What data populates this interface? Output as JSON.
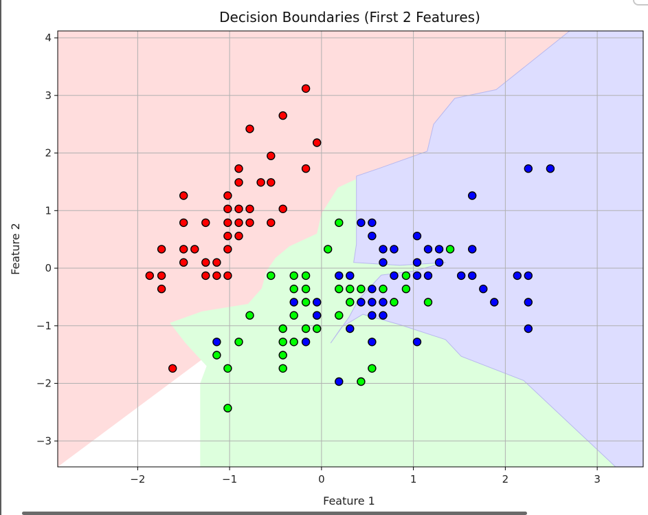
{
  "chart_data": {
    "type": "scatter",
    "title": "Decision Boundaries (First 2 Features)",
    "xlabel": "Feature 1",
    "ylabel": "Feature 2",
    "xlim": [
      -2.87,
      3.5
    ],
    "ylim": [
      -3.45,
      4.12
    ],
    "xticks": [
      -2,
      -1,
      0,
      1,
      2,
      3
    ],
    "xtick_labels": [
      "−2",
      "−1",
      "0",
      "1",
      "2",
      "3"
    ],
    "yticks": [
      -3,
      -2,
      -1,
      0,
      1,
      2,
      3,
      4
    ],
    "ytick_labels": [
      "−3",
      "−2",
      "−1",
      "0",
      "1",
      "2",
      "3",
      "4"
    ],
    "grid": true,
    "legend": "none",
    "colors": {
      "red_points": "#ff0000",
      "green_points": "#00ff00",
      "blue_points": "#0000ff",
      "red_region": "#ffdddd",
      "green_region": "#ddffdd",
      "blue_region": "#ddddff",
      "grid": "#b0b0b0"
    },
    "regions": [
      {
        "class": "red",
        "color": "#ffdddd",
        "polygon": [
          [
            -2.87,
            4.12
          ],
          [
            3.5,
            4.12
          ],
          [
            -2.87,
            -3.45
          ]
        ]
      },
      {
        "class": "green",
        "color": "#ddffdd",
        "polygon": [
          [
            -1.32,
            -3.45
          ],
          [
            -1.32,
            -2.0
          ],
          [
            -1.25,
            -1.7
          ],
          [
            -1.48,
            -1.3
          ],
          [
            -1.65,
            -0.95
          ],
          [
            -1.3,
            -0.75
          ],
          [
            -0.8,
            -0.62
          ],
          [
            -0.65,
            -0.35
          ],
          [
            -0.6,
            -0.05
          ],
          [
            -0.5,
            0.18
          ],
          [
            -0.35,
            0.38
          ],
          [
            -0.05,
            0.6
          ],
          [
            0.0,
            0.95
          ],
          [
            0.18,
            1.4
          ],
          [
            0.38,
            1.55
          ],
          [
            0.78,
            1.6
          ],
          [
            1.0,
            1.05
          ],
          [
            1.5,
            0.9
          ],
          [
            2.5,
            0.1
          ],
          [
            2.95,
            -1.5
          ],
          [
            3.5,
            -3.45
          ]
        ]
      },
      {
        "class": "blue",
        "color": "#ddddff",
        "polygon": [
          [
            3.5,
            4.12
          ],
          [
            2.7,
            4.12
          ],
          [
            1.9,
            3.1
          ],
          [
            1.45,
            2.95
          ],
          [
            1.22,
            2.5
          ],
          [
            1.15,
            2.03
          ],
          [
            0.62,
            1.73
          ],
          [
            0.38,
            1.6
          ],
          [
            0.38,
            0.42
          ],
          [
            0.35,
            0.1
          ],
          [
            0.55,
            0.08
          ],
          [
            0.85,
            0.05
          ],
          [
            1.35,
            0.1
          ],
          [
            1.0,
            -0.05
          ],
          [
            0.65,
            -0.12
          ],
          [
            0.4,
            -0.55
          ],
          [
            0.3,
            -0.85
          ],
          [
            0.1,
            -1.3
          ],
          [
            0.22,
            -1.02
          ],
          [
            0.45,
            -0.8
          ],
          [
            0.85,
            -0.98
          ],
          [
            1.35,
            -1.24
          ],
          [
            1.52,
            -1.53
          ],
          [
            2.2,
            -1.95
          ],
          [
            2.9,
            -3.0
          ],
          [
            3.2,
            -3.45
          ],
          [
            3.5,
            -3.45
          ]
        ]
      }
    ],
    "series": [
      {
        "color": "#ff0000",
        "points": [
          [
            -0.17,
            3.12
          ],
          [
            -0.42,
            2.65
          ],
          [
            -0.78,
            2.42
          ],
          [
            -0.05,
            2.18
          ],
          [
            -0.55,
            1.95
          ],
          [
            -0.17,
            1.73
          ],
          [
            -0.9,
            1.73
          ],
          [
            -0.9,
            1.49
          ],
          [
            -0.66,
            1.49
          ],
          [
            -0.55,
            1.49
          ],
          [
            -1.5,
            1.26
          ],
          [
            -1.02,
            1.26
          ],
          [
            -1.02,
            1.03
          ],
          [
            -0.9,
            1.03
          ],
          [
            -0.78,
            1.03
          ],
          [
            -0.42,
            1.03
          ],
          [
            -1.5,
            0.79
          ],
          [
            -1.26,
            0.79
          ],
          [
            -1.02,
            0.79
          ],
          [
            -0.9,
            0.79
          ],
          [
            -0.78,
            0.79
          ],
          [
            -0.55,
            0.79
          ],
          [
            -1.02,
            0.56
          ],
          [
            -0.9,
            0.56
          ],
          [
            -1.74,
            0.33
          ],
          [
            -1.5,
            0.33
          ],
          [
            -1.38,
            0.33
          ],
          [
            -1.02,
            0.33
          ],
          [
            -1.5,
            0.1
          ],
          [
            -1.26,
            0.1
          ],
          [
            -1.14,
            0.1
          ],
          [
            -1.87,
            -0.13
          ],
          [
            -1.74,
            -0.13
          ],
          [
            -1.26,
            -0.13
          ],
          [
            -1.14,
            -0.13
          ],
          [
            -1.02,
            -0.13
          ],
          [
            -1.74,
            -0.36
          ],
          [
            -1.62,
            -1.74
          ]
        ]
      },
      {
        "color": "#00ff00",
        "points": [
          [
            0.19,
            0.79
          ],
          [
            0.07,
            0.33
          ],
          [
            1.4,
            0.33
          ],
          [
            -0.55,
            -0.13
          ],
          [
            -0.3,
            -0.13
          ],
          [
            -0.17,
            -0.13
          ],
          [
            0.92,
            -0.13
          ],
          [
            -0.3,
            -0.36
          ],
          [
            -0.17,
            -0.36
          ],
          [
            0.19,
            -0.36
          ],
          [
            0.31,
            -0.36
          ],
          [
            0.43,
            -0.36
          ],
          [
            0.67,
            -0.36
          ],
          [
            0.92,
            -0.36
          ],
          [
            -0.17,
            -0.59
          ],
          [
            0.31,
            -0.59
          ],
          [
            0.79,
            -0.59
          ],
          [
            1.16,
            -0.59
          ],
          [
            -0.78,
            -0.82
          ],
          [
            -0.3,
            -0.82
          ],
          [
            -0.05,
            -0.82
          ],
          [
            0.19,
            -0.82
          ],
          [
            -0.42,
            -1.05
          ],
          [
            -0.17,
            -1.05
          ],
          [
            -0.05,
            -1.05
          ],
          [
            -0.9,
            -1.28
          ],
          [
            -0.42,
            -1.28
          ],
          [
            -0.3,
            -1.28
          ],
          [
            -1.14,
            -1.51
          ],
          [
            -0.42,
            -1.51
          ],
          [
            -1.02,
            -1.74
          ],
          [
            -0.42,
            -1.74
          ],
          [
            0.55,
            -1.74
          ],
          [
            0.43,
            -1.97
          ],
          [
            -1.02,
            -2.43
          ]
        ]
      },
      {
        "color": "#0000ff",
        "points": [
          [
            2.25,
            1.73
          ],
          [
            2.49,
            1.73
          ],
          [
            1.64,
            1.26
          ],
          [
            0.43,
            0.79
          ],
          [
            0.55,
            0.79
          ],
          [
            0.55,
            0.56
          ],
          [
            1.04,
            0.56
          ],
          [
            0.67,
            0.33
          ],
          [
            0.79,
            0.33
          ],
          [
            1.16,
            0.33
          ],
          [
            1.28,
            0.33
          ],
          [
            1.64,
            0.33
          ],
          [
            0.67,
            0.1
          ],
          [
            1.04,
            0.1
          ],
          [
            1.28,
            0.1
          ],
          [
            0.19,
            -0.13
          ],
          [
            0.31,
            -0.13
          ],
          [
            0.79,
            -0.13
          ],
          [
            1.04,
            -0.13
          ],
          [
            1.16,
            -0.13
          ],
          [
            1.52,
            -0.13
          ],
          [
            1.64,
            -0.13
          ],
          [
            2.13,
            -0.13
          ],
          [
            2.25,
            -0.13
          ],
          [
            0.55,
            -0.36
          ],
          [
            1.76,
            -0.36
          ],
          [
            -0.3,
            -0.59
          ],
          [
            -0.05,
            -0.59
          ],
          [
            0.43,
            -0.59
          ],
          [
            0.55,
            -0.59
          ],
          [
            0.67,
            -0.59
          ],
          [
            1.88,
            -0.59
          ],
          [
            2.25,
            -0.59
          ],
          [
            -0.05,
            -0.82
          ],
          [
            0.55,
            -0.82
          ],
          [
            0.67,
            -0.82
          ],
          [
            0.31,
            -1.05
          ],
          [
            2.25,
            -1.05
          ],
          [
            -1.14,
            -1.28
          ],
          [
            -0.17,
            -1.28
          ],
          [
            0.55,
            -1.28
          ],
          [
            1.04,
            -1.28
          ],
          [
            0.19,
            -1.97
          ]
        ]
      }
    ]
  }
}
